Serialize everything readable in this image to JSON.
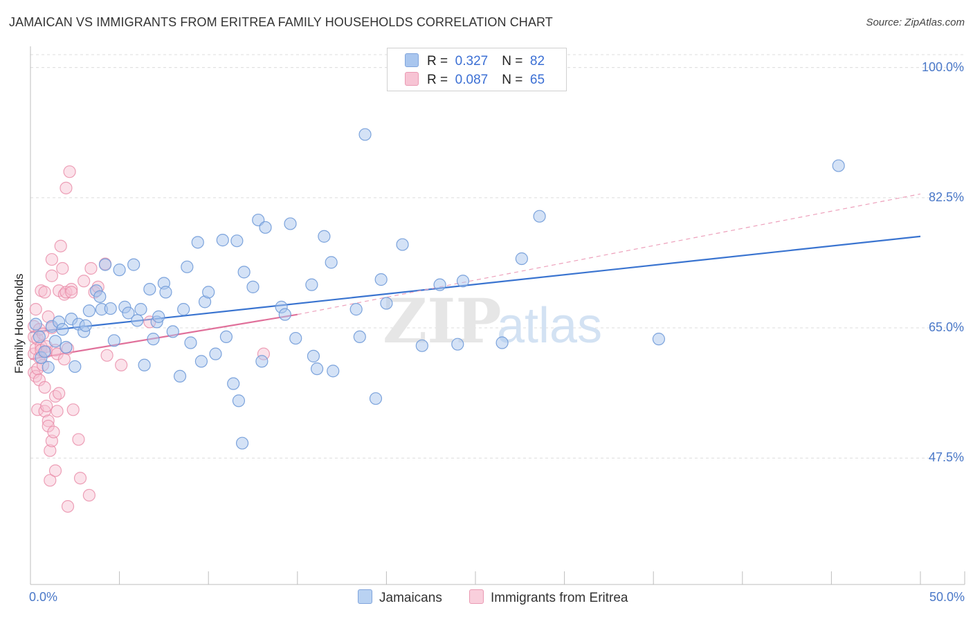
{
  "title": "JAMAICAN VS IMMIGRANTS FROM ERITREA FAMILY HOUSEHOLDS CORRELATION CHART",
  "source": "Source: ZipAtlas.com",
  "watermark": {
    "zip": "ZIP",
    "atlas": "atlas"
  },
  "legend": {
    "rows": [
      {
        "r_label": "R =",
        "r_value": "0.327",
        "n_label": "N =",
        "n_value": "82",
        "color": "#a9c6ee"
      },
      {
        "r_label": "R =",
        "r_value": "0.087",
        "n_label": "N =",
        "n_value": "65",
        "color": "#f7b6c9"
      }
    ]
  },
  "colors": {
    "blue_fill": "#a9c6ee",
    "blue_stroke": "#6f9ad8",
    "blue_line": "#3a74d0",
    "pink_fill": "#f7bfd0",
    "pink_stroke": "#e98aa6",
    "pink_line": "#e0709a",
    "tick_text": "#4a78c8"
  },
  "chart_data": {
    "type": "scatter",
    "title": "JAMAICAN VS IMMIGRANTS FROM ERITREA FAMILY HOUSEHOLDS CORRELATION CHART",
    "xlabel": "",
    "ylabel": "Family Households",
    "xlim": [
      0,
      50
    ],
    "ylim": [
      30.5,
      103.5
    ],
    "x_tick_labels": [
      "0.0%",
      "50.0%"
    ],
    "y_ticks": [
      47.5,
      65.0,
      82.5,
      100.0
    ],
    "y_tick_labels": [
      "47.5%",
      "65.0%",
      "82.5%",
      "100.0%"
    ],
    "grid": true,
    "legend_position": "top-center",
    "series": [
      {
        "name": "Jamaicans",
        "R": 0.327,
        "N": 82,
        "trend": {
          "x": [
            0,
            50
          ],
          "y": [
            64.4,
            77.3
          ]
        },
        "points": [
          [
            0.3,
            65.5
          ],
          [
            0.5,
            63.8
          ],
          [
            0.6,
            61.0
          ],
          [
            0.8,
            61.8
          ],
          [
            1.0,
            59.7
          ],
          [
            1.2,
            65.2
          ],
          [
            1.4,
            63.2
          ],
          [
            1.6,
            65.8
          ],
          [
            1.8,
            64.8
          ],
          [
            2.0,
            62.4
          ],
          [
            2.3,
            66.2
          ],
          [
            2.5,
            59.8
          ],
          [
            2.7,
            65.5
          ],
          [
            3.0,
            64.5
          ],
          [
            3.1,
            65.3
          ],
          [
            3.3,
            67.3
          ],
          [
            3.7,
            70.0
          ],
          [
            3.9,
            69.2
          ],
          [
            4.0,
            67.5
          ],
          [
            4.2,
            73.5
          ],
          [
            4.5,
            67.6
          ],
          [
            4.7,
            63.3
          ],
          [
            5.0,
            72.8
          ],
          [
            5.3,
            67.8
          ],
          [
            5.5,
            67.0
          ],
          [
            5.8,
            73.5
          ],
          [
            6.0,
            66.0
          ],
          [
            6.2,
            67.5
          ],
          [
            6.4,
            60.0
          ],
          [
            6.7,
            70.2
          ],
          [
            6.9,
            63.5
          ],
          [
            7.1,
            65.8
          ],
          [
            7.2,
            66.5
          ],
          [
            7.5,
            71.0
          ],
          [
            7.6,
            69.8
          ],
          [
            8.0,
            64.5
          ],
          [
            8.4,
            58.5
          ],
          [
            8.6,
            67.5
          ],
          [
            8.8,
            73.2
          ],
          [
            9.0,
            63.0
          ],
          [
            9.4,
            76.5
          ],
          [
            9.6,
            60.5
          ],
          [
            9.8,
            68.5
          ],
          [
            10.0,
            69.8
          ],
          [
            10.4,
            61.5
          ],
          [
            10.8,
            76.8
          ],
          [
            11.0,
            63.8
          ],
          [
            11.4,
            57.5
          ],
          [
            11.6,
            76.7
          ],
          [
            12.0,
            72.5
          ],
          [
            12.5,
            70.5
          ],
          [
            12.8,
            79.5
          ],
          [
            13.0,
            60.5
          ],
          [
            13.2,
            78.5
          ],
          [
            14.1,
            67.8
          ],
          [
            14.3,
            66.8
          ],
          [
            14.6,
            79.0
          ],
          [
            14.9,
            63.6
          ],
          [
            15.8,
            70.8
          ],
          [
            15.9,
            61.2
          ],
          [
            16.1,
            59.5
          ],
          [
            16.5,
            77.3
          ],
          [
            16.9,
            73.8
          ],
          [
            17.0,
            59.2
          ],
          [
            18.3,
            67.5
          ],
          [
            18.5,
            63.8
          ],
          [
            18.8,
            91.0
          ],
          [
            19.4,
            55.5
          ],
          [
            19.7,
            71.5
          ],
          [
            20.0,
            68.3
          ],
          [
            20.9,
            76.2
          ],
          [
            22.0,
            62.6
          ],
          [
            23.0,
            70.8
          ],
          [
            24.0,
            62.8
          ],
          [
            24.3,
            71.3
          ],
          [
            26.5,
            63.0
          ],
          [
            27.6,
            74.3
          ],
          [
            28.6,
            80.0
          ],
          [
            35.3,
            63.5
          ],
          [
            45.4,
            86.8
          ],
          [
            11.7,
            55.2
          ],
          [
            11.9,
            49.5
          ]
        ]
      },
      {
        "name": "Immigrants from Eritrea",
        "R": 0.087,
        "N": 65,
        "trend": {
          "x": [
            0,
            15
          ],
          "y": [
            60.8,
            66.8
          ],
          "dashed_extension": {
            "x": [
              15,
              50
            ],
            "y": [
              66.8,
              83.0
            ]
          }
        },
        "points": [
          [
            0.2,
            65.2
          ],
          [
            0.2,
            63.8
          ],
          [
            0.2,
            61.5
          ],
          [
            0.2,
            59.0
          ],
          [
            0.3,
            62.2
          ],
          [
            0.3,
            58.5
          ],
          [
            0.3,
            67.5
          ],
          [
            0.4,
            63.5
          ],
          [
            0.4,
            59.5
          ],
          [
            0.4,
            54.0
          ],
          [
            0.5,
            64.8
          ],
          [
            0.5,
            61.0
          ],
          [
            0.5,
            58.0
          ],
          [
            0.6,
            62.5
          ],
          [
            0.6,
            62.0
          ],
          [
            0.6,
            70.0
          ],
          [
            0.7,
            64.2
          ],
          [
            0.7,
            60.0
          ],
          [
            0.8,
            69.8
          ],
          [
            0.8,
            57.0
          ],
          [
            0.8,
            53.8
          ],
          [
            0.9,
            62.5
          ],
          [
            0.9,
            61.8
          ],
          [
            0.9,
            54.5
          ],
          [
            1.0,
            66.5
          ],
          [
            1.0,
            52.5
          ],
          [
            1.0,
            51.8
          ],
          [
            1.1,
            48.5
          ],
          [
            1.1,
            44.5
          ],
          [
            1.2,
            74.2
          ],
          [
            1.2,
            72.0
          ],
          [
            1.2,
            65.0
          ],
          [
            1.2,
            49.8
          ],
          [
            1.3,
            51.0
          ],
          [
            1.4,
            62.0
          ],
          [
            1.4,
            55.8
          ],
          [
            1.4,
            45.8
          ],
          [
            1.5,
            61.5
          ],
          [
            1.5,
            53.8
          ],
          [
            1.6,
            70.0
          ],
          [
            1.6,
            56.2
          ],
          [
            1.7,
            76.0
          ],
          [
            1.8,
            73.0
          ],
          [
            1.9,
            69.5
          ],
          [
            1.9,
            60.8
          ],
          [
            2.0,
            83.8
          ],
          [
            2.0,
            69.8
          ],
          [
            2.1,
            62.2
          ],
          [
            2.1,
            41.0
          ],
          [
            2.2,
            86.0
          ],
          [
            2.3,
            70.2
          ],
          [
            2.3,
            69.8
          ],
          [
            2.4,
            54.0
          ],
          [
            2.7,
            50.0
          ],
          [
            2.8,
            44.8
          ],
          [
            3.0,
            71.3
          ],
          [
            3.3,
            42.5
          ],
          [
            3.4,
            73.0
          ],
          [
            3.6,
            69.8
          ],
          [
            3.8,
            70.5
          ],
          [
            4.2,
            73.6
          ],
          [
            4.3,
            61.3
          ],
          [
            5.1,
            60.0
          ],
          [
            6.7,
            65.8
          ],
          [
            13.1,
            61.5
          ]
        ]
      }
    ]
  },
  "bottom_legend": [
    {
      "label": "Jamaicans",
      "color": "#a9c6ee"
    },
    {
      "label": "Immigrants from Eritrea",
      "color": "#f7b6c9"
    }
  ]
}
